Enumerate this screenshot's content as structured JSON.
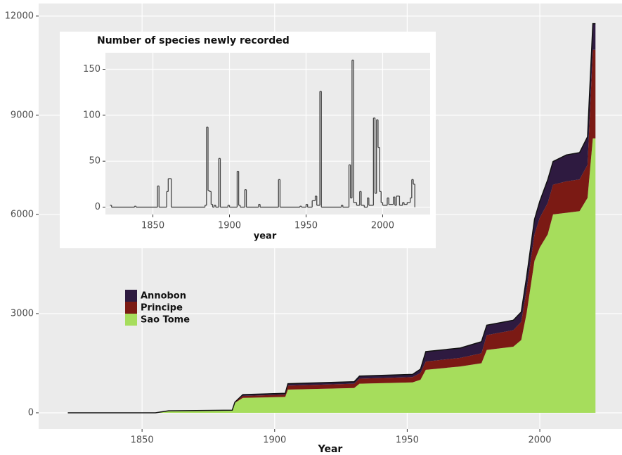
{
  "chart_data": [
    {
      "type": "stacked-area",
      "x_label": "Year",
      "x": [
        1822,
        1855,
        1860,
        1884,
        1885,
        1888,
        1904,
        1905,
        1930,
        1932,
        1952,
        1955,
        1957,
        1970,
        1978,
        1980,
        1990,
        1993,
        1995,
        1998,
        2000,
        2003,
        2005,
        2010,
        2015,
        2018,
        2020,
        2021
      ],
      "series": [
        {
          "name": "Annobon",
          "color": "#2e1a40",
          "values": [
            0,
            0,
            0,
            0,
            0,
            40,
            40,
            60,
            60,
            80,
            80,
            120,
            300,
            300,
            350,
            300,
            300,
            300,
            400,
            450,
            500,
            700,
            700,
            800,
            810,
            850,
            790,
            790
          ]
        },
        {
          "name": "Principe",
          "color": "#7b1a14",
          "values": [
            0,
            0,
            0,
            0,
            20,
            60,
            70,
            120,
            130,
            150,
            160,
            200,
            250,
            260,
            300,
            450,
            500,
            550,
            700,
            800,
            900,
            950,
            900,
            950,
            960,
            1000,
            2680,
            2680
          ]
        },
        {
          "name": "Sao Tome",
          "color": "#a6dd5c",
          "values": [
            0,
            0,
            60,
            80,
            300,
            450,
            480,
            700,
            750,
            880,
            920,
            1000,
            1300,
            1400,
            1500,
            1900,
            2000,
            2200,
            3000,
            4600,
            5000,
            5400,
            6000,
            6050,
            6100,
            6500,
            8300,
            8300
          ]
        }
      ],
      "xlim": [
        1811,
        2031
      ],
      "ylim": [
        -490,
        12380
      ],
      "xticks": [
        1850,
        1900,
        1950,
        2000
      ],
      "yticks": [
        0,
        3000,
        6000,
        9000,
        12000
      ],
      "grid": true,
      "legend_position": "center-left"
    },
    {
      "type": "step",
      "title": "Number of species newly recorded",
      "x_label": "year",
      "x": [
        1822,
        1823,
        1838,
        1839,
        1853,
        1854,
        1859,
        1860,
        1862,
        1884,
        1885,
        1886,
        1887,
        1888,
        1889,
        1890,
        1891,
        1893,
        1894,
        1899,
        1900,
        1905,
        1906,
        1907,
        1910,
        1911,
        1919,
        1920,
        1932,
        1933,
        1946,
        1947,
        1950,
        1951,
        1954,
        1956,
        1957,
        1959,
        1960,
        1973,
        1974,
        1978,
        1979,
        1980,
        1981,
        1983,
        1985,
        1986,
        1988,
        1990,
        1991,
        1994,
        1995,
        1996,
        1997,
        1998,
        1999,
        2000,
        2003,
        2004,
        2007,
        2008,
        2009,
        2011,
        2013,
        2014,
        2016,
        2018,
        2019,
        2020,
        2021
      ],
      "values": [
        2,
        0,
        1,
        0,
        23,
        0,
        17,
        31,
        0,
        2,
        87,
        18,
        17,
        3,
        0,
        2,
        0,
        53,
        0,
        2,
        0,
        39,
        2,
        0,
        19,
        0,
        3,
        0,
        30,
        0,
        1,
        0,
        3,
        0,
        7,
        12,
        2,
        126,
        0,
        2,
        0,
        46,
        10,
        160,
        5,
        2,
        17,
        2,
        0,
        10,
        2,
        97,
        15,
        95,
        65,
        17,
        5,
        2,
        10,
        3,
        11,
        2,
        12,
        2,
        5,
        3,
        5,
        10,
        30,
        25,
        0
      ],
      "color": "#444444",
      "xlim": [
        1819,
        2031
      ],
      "ylim": [
        -8,
        168
      ],
      "xticks": [
        1850,
        1900,
        1950,
        2000
      ],
      "yticks": [
        0,
        50,
        100,
        150
      ],
      "grid": true
    }
  ]
}
